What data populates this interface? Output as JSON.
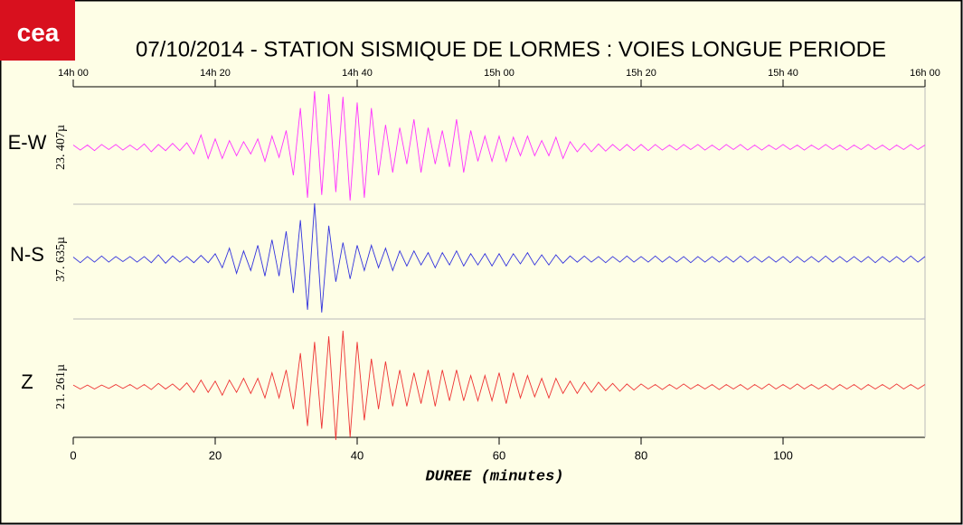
{
  "logo": "cea",
  "chart_data": {
    "type": "line",
    "title": "07/10/2014  -  STATION SISMIQUE DE LORMES : VOIES LONGUE PERIODE",
    "xlabel": "DUREE (minutes)",
    "xlim": [
      0,
      120
    ],
    "xticks": [
      0,
      20,
      40,
      60,
      80,
      100
    ],
    "x2ticks": [
      {
        "value": 0,
        "label": "14h 00"
      },
      {
        "value": 20,
        "label": "14h 20"
      },
      {
        "value": 40,
        "label": "14h 40"
      },
      {
        "value": 60,
        "label": "15h 00"
      },
      {
        "value": 80,
        "label": "15h 20"
      },
      {
        "value": 100,
        "label": "15h 40"
      },
      {
        "value": 120,
        "label": "16h 00"
      }
    ],
    "x": [
      0,
      1,
      2,
      3,
      4,
      5,
      6,
      7,
      8,
      9,
      10,
      11,
      12,
      13,
      14,
      15,
      16,
      17,
      18,
      19,
      20,
      21,
      22,
      23,
      24,
      25,
      26,
      27,
      28,
      29,
      30,
      31,
      32,
      33,
      34,
      35,
      36,
      37,
      38,
      39,
      40,
      41,
      42,
      43,
      44,
      45,
      46,
      47,
      48,
      49,
      50,
      51,
      52,
      53,
      54,
      55,
      56,
      57,
      58,
      59,
      60,
      61,
      62,
      63,
      64,
      65,
      66,
      67,
      68,
      69,
      70,
      71,
      72,
      73,
      74,
      75,
      76,
      77,
      78,
      79,
      80,
      81,
      82,
      83,
      84,
      85,
      86,
      87,
      88,
      89,
      90,
      91,
      92,
      93,
      94,
      95,
      96,
      97,
      98,
      99,
      100,
      101,
      102,
      103,
      104,
      105,
      106,
      107,
      108,
      109,
      110,
      111,
      112,
      113,
      114,
      115,
      116,
      117,
      118,
      119,
      120
    ],
    "series": [
      {
        "name": "E-W",
        "scale_label": "23. 407µ",
        "color": "#ff33ff",
        "values": [
          0.04,
          -0.05,
          0.04,
          -0.06,
          0.05,
          -0.04,
          0.05,
          -0.05,
          0.04,
          -0.05,
          0.06,
          -0.08,
          0.05,
          -0.06,
          0.07,
          -0.06,
          0.08,
          -0.12,
          0.22,
          -0.2,
          0.15,
          -0.2,
          0.12,
          -0.15,
          0.1,
          -0.12,
          0.15,
          -0.25,
          0.2,
          -0.18,
          0.3,
          -0.5,
          0.7,
          -0.9,
          1.0,
          -0.85,
          0.95,
          -0.8,
          0.9,
          -0.95,
          0.8,
          -0.9,
          0.7,
          -0.5,
          0.4,
          -0.45,
          0.35,
          -0.3,
          0.5,
          -0.45,
          0.35,
          -0.3,
          0.3,
          -0.35,
          0.5,
          -0.45,
          0.3,
          -0.25,
          0.2,
          -0.25,
          0.2,
          -0.25,
          0.18,
          -0.15,
          0.2,
          -0.15,
          0.12,
          -0.15,
          0.18,
          -0.2,
          0.1,
          -0.08,
          0.07,
          -0.08,
          0.06,
          -0.07,
          0.05,
          -0.06,
          0.05,
          -0.06,
          0.05,
          -0.06,
          0.05,
          -0.05,
          0.04,
          -0.05,
          0.05,
          -0.04,
          0.05,
          -0.05,
          0.04,
          -0.05,
          0.05,
          -0.04,
          0.05,
          -0.05,
          0.04,
          -0.05,
          0.04,
          -0.04,
          0.05,
          -0.04,
          0.04,
          -0.05,
          0.04,
          -0.04,
          0.05,
          -0.04,
          0.04,
          -0.05,
          0.04,
          -0.04,
          0.05,
          -0.04,
          0.04,
          -0.05,
          0.04,
          -0.04,
          0.05,
          -0.04,
          0.04
        ]
      },
      {
        "name": "N-S",
        "scale_label": "37. 635µ",
        "color": "#3333dd",
        "values": [
          0.04,
          -0.06,
          0.05,
          -0.05,
          0.06,
          -0.05,
          0.05,
          -0.04,
          0.05,
          -0.05,
          0.05,
          -0.06,
          0.08,
          -0.07,
          0.06,
          -0.05,
          0.05,
          -0.06,
          0.07,
          -0.06,
          0.1,
          -0.15,
          0.2,
          -0.25,
          0.15,
          -0.2,
          0.25,
          -0.3,
          0.35,
          -0.3,
          0.5,
          -0.6,
          0.7,
          -0.9,
          1.0,
          -0.95,
          0.6,
          -0.4,
          0.3,
          -0.35,
          0.25,
          -0.2,
          0.25,
          -0.15,
          0.2,
          -0.2,
          0.15,
          -0.12,
          0.15,
          -0.1,
          0.12,
          -0.15,
          0.12,
          -0.1,
          0.15,
          -0.12,
          0.1,
          -0.1,
          0.1,
          -0.12,
          0.1,
          -0.12,
          0.1,
          -0.08,
          0.12,
          -0.1,
          0.08,
          -0.1,
          0.08,
          -0.07,
          0.06,
          -0.05,
          0.06,
          -0.05,
          0.05,
          -0.06,
          0.05,
          -0.05,
          0.06,
          -0.05,
          0.05,
          -0.05,
          0.06,
          -0.05,
          0.05,
          -0.05,
          0.05,
          -0.06,
          0.05,
          -0.05,
          0.05,
          -0.05,
          0.05,
          -0.05,
          0.06,
          -0.05,
          0.05,
          -0.05,
          0.05,
          -0.05,
          0.05,
          -0.06,
          0.05,
          -0.05,
          0.05,
          -0.05,
          0.06,
          -0.05,
          0.05,
          -0.05,
          0.05,
          -0.05,
          0.05,
          -0.06,
          0.05,
          -0.05,
          0.05,
          -0.05,
          0.06,
          -0.05,
          0.05
        ]
      },
      {
        "name": "Z",
        "scale_label": "21. 261µ",
        "color": "#ee3333",
        "values": [
          0.03,
          -0.04,
          0.03,
          -0.04,
          0.03,
          -0.03,
          0.04,
          -0.03,
          0.04,
          -0.04,
          0.04,
          -0.05,
          0.06,
          -0.04,
          0.05,
          -0.06,
          0.07,
          -0.1,
          0.12,
          -0.1,
          0.1,
          -0.15,
          0.12,
          -0.1,
          0.15,
          -0.12,
          0.15,
          -0.2,
          0.25,
          -0.2,
          0.3,
          -0.4,
          0.6,
          -0.7,
          0.8,
          -0.75,
          0.9,
          -0.95,
          1.0,
          -0.9,
          0.8,
          -0.6,
          0.5,
          -0.4,
          0.45,
          -0.35,
          0.3,
          -0.35,
          0.25,
          -0.3,
          0.3,
          -0.35,
          0.3,
          -0.25,
          0.3,
          -0.25,
          0.2,
          -0.25,
          0.2,
          -0.25,
          0.25,
          -0.3,
          0.25,
          -0.2,
          0.2,
          -0.18,
          0.15,
          -0.2,
          0.15,
          -0.12,
          0.1,
          -0.12,
          0.08,
          -0.1,
          0.08,
          -0.07,
          0.06,
          -0.08,
          0.05,
          -0.06,
          0.05,
          -0.04,
          0.04,
          -0.05,
          0.04,
          -0.04,
          0.05,
          -0.04,
          0.04,
          -0.04,
          0.04,
          -0.05,
          0.04,
          -0.04,
          0.04,
          -0.05,
          0.04,
          -0.04,
          0.05,
          -0.04,
          0.04,
          -0.04,
          0.05,
          -0.04,
          0.04,
          -0.04,
          0.04,
          -0.05,
          0.04,
          -0.04,
          0.04,
          -0.05,
          0.04,
          -0.04,
          0.04,
          -0.04,
          0.05,
          -0.04,
          0.04,
          -0.04,
          0.04
        ]
      }
    ]
  }
}
